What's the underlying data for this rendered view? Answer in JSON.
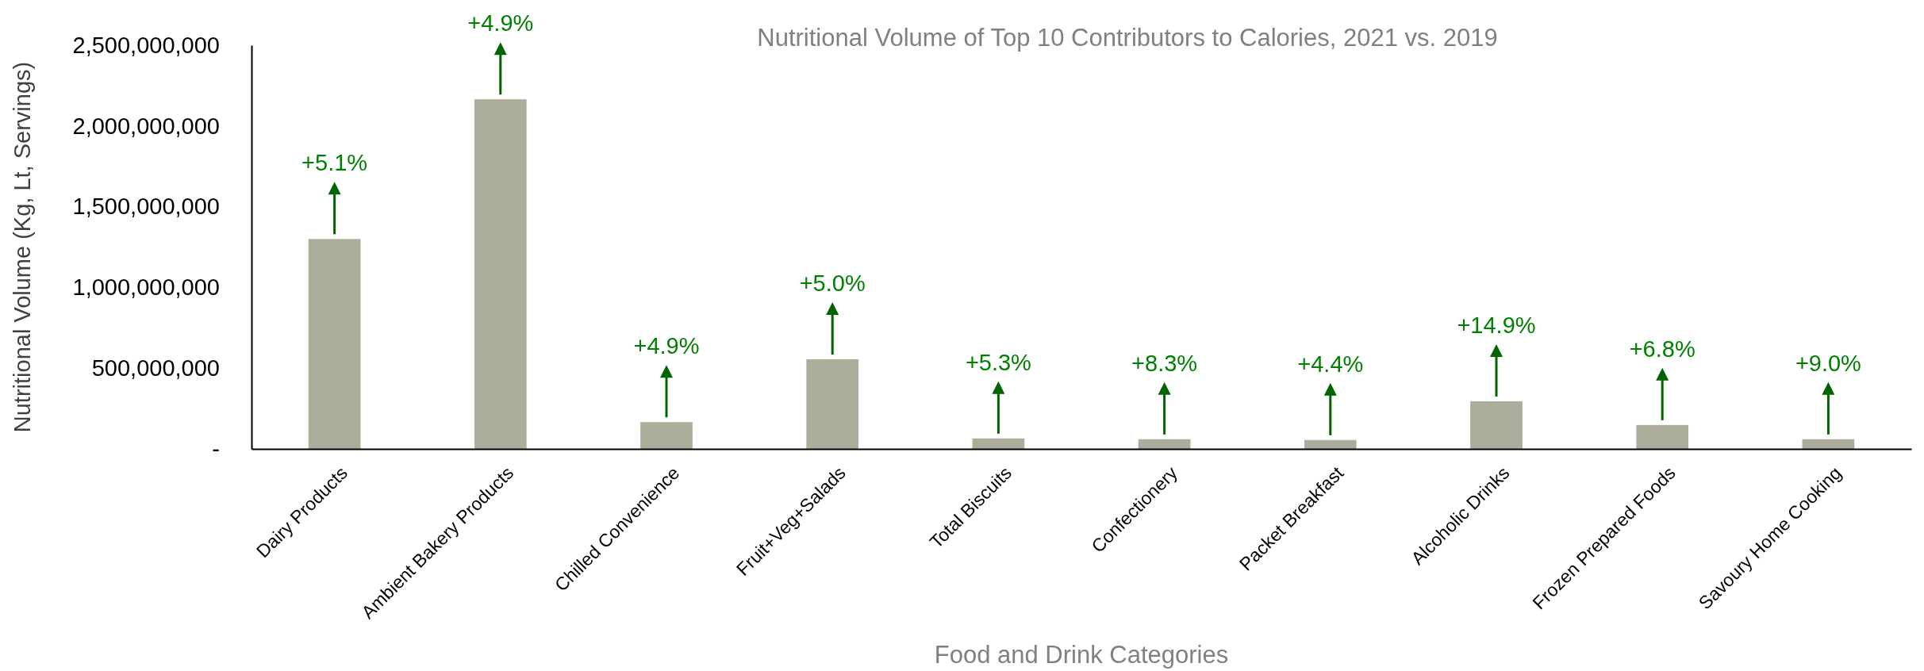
{
  "chart_data": {
    "type": "bar",
    "title": "Nutritional Volume of Top 10 Contributors to Calories, 2021 vs. 2019",
    "xlabel": "Food and Drink Categories",
    "ylabel": "Nutritional Volume (Kg, Lt, Servings)",
    "categories": [
      "Dairy Products",
      "Ambient Bakery Products",
      "Chilled Convenience",
      "Fruit+Veg+Salads",
      "Total Biscuits",
      "Confectionery",
      "Packet Breakfast",
      "Alcoholic Drinks",
      "Frozen Prepared Foods",
      "Savoury Home Cooking"
    ],
    "values": [
      1300000000,
      2165000000,
      166000000,
      555000000,
      65000000,
      60000000,
      55000000,
      295000000,
      148000000,
      60000000
    ],
    "color": "#adad9c",
    "ylim": [
      0,
      2500000000
    ],
    "yticks": [
      {
        "value": 0,
        "label": "-"
      },
      {
        "value": 500000000,
        "label": "500,000,000"
      },
      {
        "value": 1000000000,
        "label": "1,000,000,000"
      },
      {
        "value": 1500000000,
        "label": "1,500,000,000"
      },
      {
        "value": 2000000000,
        "label": "2,000,000,000"
      },
      {
        "value": 2500000000,
        "label": "2,500,000,000"
      }
    ],
    "grid": false,
    "annotations": [
      {
        "text": "+5.1%",
        "x": "Dairy Products",
        "y": 1300000000
      },
      {
        "text": "+4.9%",
        "x": "Ambient Bakery Products",
        "y": 2165000000
      },
      {
        "text": "+4.9%",
        "x": "Chilled Convenience",
        "y": 166000000
      },
      {
        "text": "+5.0%",
        "x": "Fruit+Veg+Salads",
        "y": 555000000
      },
      {
        "text": "+5.3%",
        "x": "Total Biscuits",
        "y": 65000000
      },
      {
        "text": "+8.3%",
        "x": "Confectionery",
        "y": 60000000
      },
      {
        "text": "+4.4%",
        "x": "Packet Breakfast",
        "y": 55000000
      },
      {
        "text": "+14.9%",
        "x": "Alcoholic Drinks",
        "y": 295000000
      },
      {
        "text": "+6.8%",
        "x": "Frozen Prepared Foods",
        "y": 148000000
      },
      {
        "text": "+9.0%",
        "x": "Savoury Home Cooking",
        "y": 60000000
      }
    ]
  }
}
